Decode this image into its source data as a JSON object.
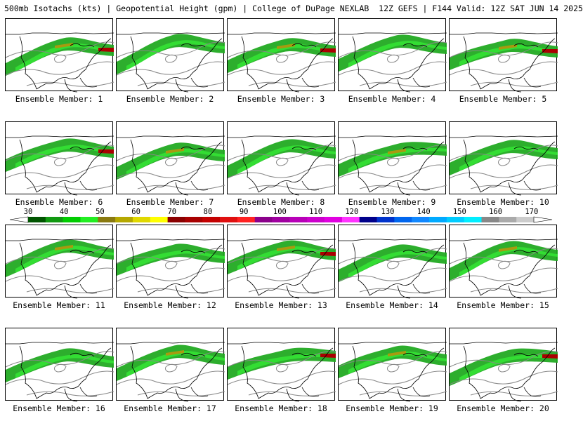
{
  "header": {
    "title": "500mb Isotachs (kts) | Geopotential Height (gpm) | College of DuPage NEXLAB",
    "run": "12Z GEFS | F144 Valid: 12Z SAT JUN 14 2025"
  },
  "panels": [
    {
      "label": "Ensemble Member: 1"
    },
    {
      "label": "Ensemble Member: 2"
    },
    {
      "label": "Ensemble Member: 3"
    },
    {
      "label": "Ensemble Member: 4"
    },
    {
      "label": "Ensemble Member: 5"
    },
    {
      "label": "Ensemble Member: 6"
    },
    {
      "label": "Ensemble Member: 7"
    },
    {
      "label": "Ensemble Member: 8"
    },
    {
      "label": "Ensemble Member: 9"
    },
    {
      "label": "Ensemble Member: 10"
    },
    {
      "label": "Ensemble Member: 11"
    },
    {
      "label": "Ensemble Member: 12"
    },
    {
      "label": "Ensemble Member: 13"
    },
    {
      "label": "Ensemble Member: 14"
    },
    {
      "label": "Ensemble Member: 15"
    },
    {
      "label": "Ensemble Member: 16"
    },
    {
      "label": "Ensemble Member: 17"
    },
    {
      "label": "Ensemble Member: 18"
    },
    {
      "label": "Ensemble Member: 19"
    },
    {
      "label": "Ensemble Member: 20"
    }
  ],
  "colorbar": {
    "labels": [
      "30",
      "40",
      "50",
      "60",
      "70",
      "80",
      "90",
      "100",
      "110",
      "120",
      "130",
      "140",
      "150",
      "160",
      "170"
    ],
    "colors": [
      "#005500",
      "#119911",
      "#00cc00",
      "#22ee22",
      "#8a7a10",
      "#b5a800",
      "#e0d800",
      "#ffff00",
      "#8b0000",
      "#a80000",
      "#c40000",
      "#e01010",
      "#ff2222",
      "#8b008b",
      "#a000a0",
      "#b800b8",
      "#cc00cc",
      "#e000e0",
      "#ff33ff",
      "#00008b",
      "#0033cc",
      "#0066ee",
      "#1188ff",
      "#00aaff",
      "#00ccff",
      "#00eeff",
      "#888888",
      "#aaaaaa",
      "#cccccc"
    ]
  },
  "colors": {
    "jet_green": "#22aa22",
    "jet_light": "#33dd33",
    "jet_olive": "#a89a10",
    "jet_red": "#aa0000",
    "height_contour": "#888888",
    "coastline": "#000000"
  }
}
